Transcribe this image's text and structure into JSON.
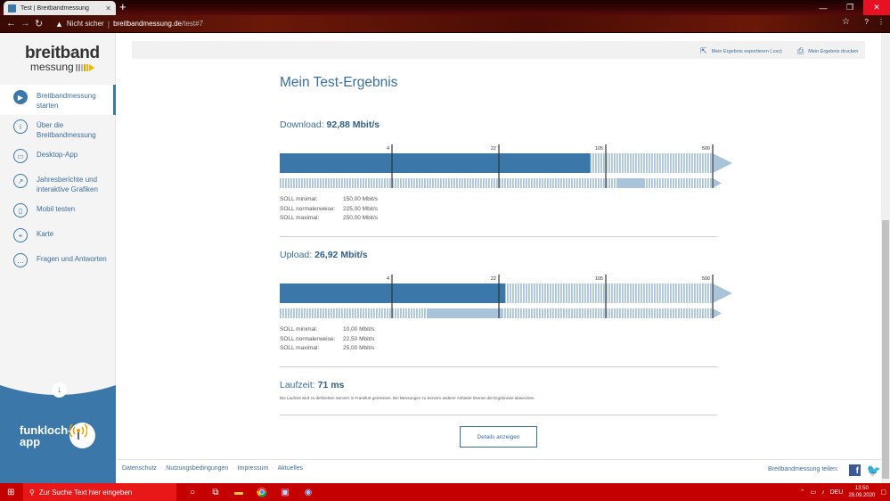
{
  "browser": {
    "tab_title": "Test | Breitbandmessung",
    "security_label": "Nicht sicher",
    "url_host": "breitbandmessung.de",
    "url_path": "/test#7"
  },
  "sidebar": {
    "logo_top": "breitband",
    "logo_bottom": "messung",
    "items": [
      {
        "label": "Breitbandmessung starten",
        "icon": "play-icon"
      },
      {
        "label": "Über die Breitbandmessung",
        "icon": "info-icon"
      },
      {
        "label": "Desktop-App",
        "icon": "monitor-icon"
      },
      {
        "label": "Jahresberichte und interaktive Grafiken",
        "icon": "chart-icon"
      },
      {
        "label": "Mobil testen",
        "icon": "phone-icon"
      },
      {
        "label": "Karte",
        "icon": "map-pin-icon"
      },
      {
        "label": "Fragen und Antworten",
        "icon": "chat-icon"
      }
    ],
    "promo_text_1": "funkloch-",
    "promo_text_2": "app"
  },
  "actions": {
    "export_label": "Mein Ergebnis exportieren (.csv)",
    "print_label": "Mein Ergebnis drucken"
  },
  "result": {
    "title": "Mein Test-Ergebnis",
    "download": {
      "label": "Download:",
      "value": "92,88 Mbit/s",
      "mbits": 92.88,
      "soll": [
        {
          "label": "SOLL minimal:",
          "value": "150,00 Mbit/s"
        },
        {
          "label": "SOLL normalerweise:",
          "value": "225,00 Mbit/s"
        },
        {
          "label": "SOLL maximal:",
          "value": "250,00 Mbit/s"
        }
      ],
      "soll_range": [
        150,
        250
      ]
    },
    "upload": {
      "label": "Upload:",
      "value": "26,92 Mbit/s",
      "mbits": 26.92,
      "soll": [
        {
          "label": "SOLL minimal:",
          "value": "10,00 Mbit/s"
        },
        {
          "label": "SOLL normalerweise:",
          "value": "22,50 Mbit/s"
        },
        {
          "label": "SOLL maximal:",
          "value": "25,00 Mbit/s"
        }
      ],
      "soll_range": [
        10,
        25
      ]
    },
    "scale_ticks": [
      "4",
      "22",
      "105",
      "500"
    ],
    "laufzeit": {
      "label": "Laufzeit:",
      "value": "71 ms",
      "note": "Die Laufzeit wird zu definierten Servern in Frankfurt gemessen. Bei Messungen zu Servern anderer Anbieter können die Ergebnisse abweichen."
    },
    "details_button": "Details anzeigen"
  },
  "footer": {
    "links": [
      "Datenschutz",
      "Nutzungsbedingungen",
      "Impressum",
      "Aktuelles"
    ],
    "share_label": "Breitbandmessung teilen:"
  },
  "taskbar": {
    "search_placeholder": "Zur Suche Text hier eingeben",
    "language": "DEU",
    "time": "13:50",
    "date": "28.09.2020"
  },
  "colors": {
    "accent": "#3b77a8",
    "bar_dark": "#3b77a8",
    "bar_light": "#a9c3da",
    "taskbar": "#c40000"
  }
}
